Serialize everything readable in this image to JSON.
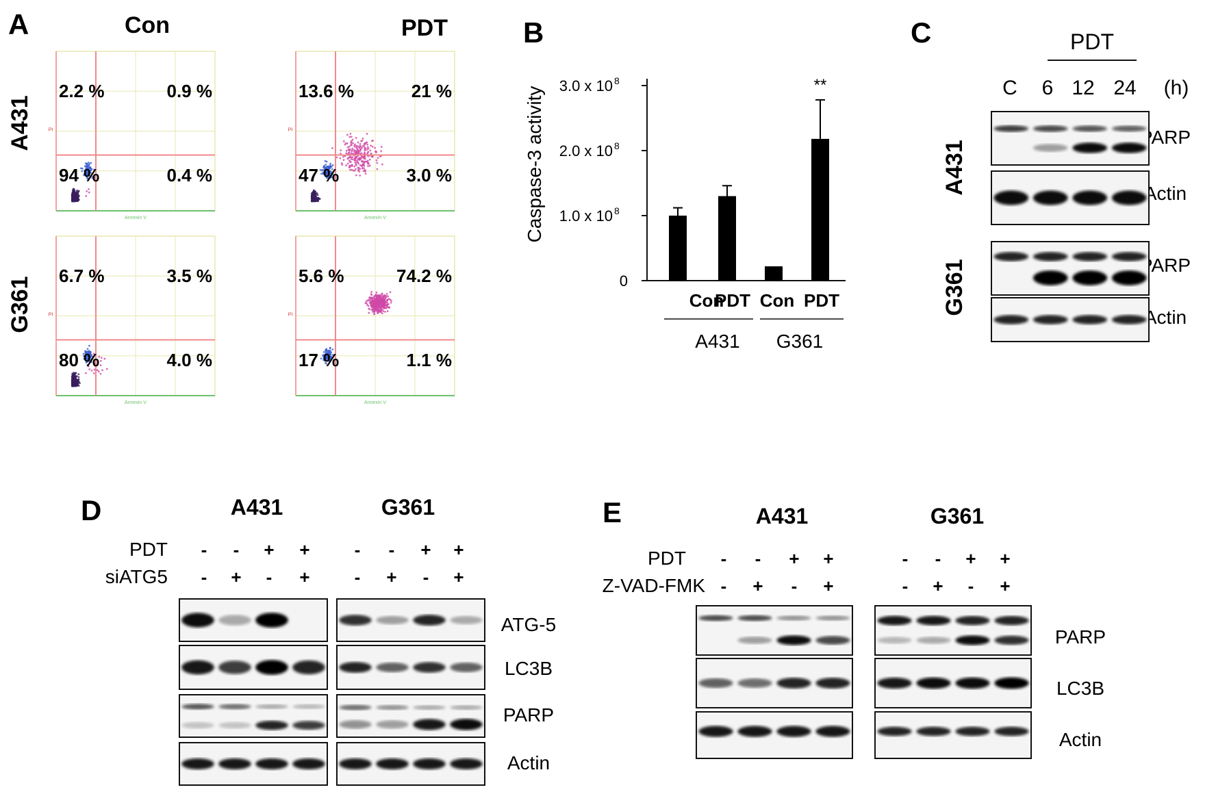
{
  "panel_letters": [
    "A",
    "B",
    "C",
    "D",
    "E"
  ],
  "panelA": {
    "columns": [
      "Con",
      "PDT"
    ],
    "rows": [
      "A431",
      "G361"
    ],
    "x_axis_label": "Annexin V",
    "y_axis_label": "PI",
    "quadrants": [
      {
        "row": "A431",
        "col": "Con",
        "ul": "2.2 %",
        "ur": "0.9 %",
        "ll": "94 %",
        "lr": "0.4 %"
      },
      {
        "row": "A431",
        "col": "PDT",
        "ul": "13.6 %",
        "ur": "21 %",
        "ll": "47 %",
        "lr": "3.0 %"
      },
      {
        "row": "G361",
        "col": "Con",
        "ul": "6.7 %",
        "ur": "3.5 %",
        "ll": "80 %",
        "lr": "4.0 %"
      },
      {
        "row": "G361",
        "col": "PDT",
        "ul": "5.6 %",
        "ur": "74.2 %",
        "ll": "17 %",
        "lr": "1.1 %"
      }
    ],
    "colors": {
      "gate": "#f08a8a",
      "grid": "#e8e8b0",
      "xaxis": "#6cc26c",
      "dots_dark": "#3a1f5e",
      "dots_blue": "#3c5fd0",
      "dots_pink": "#d04aa8"
    }
  },
  "chart_data": {
    "type": "bar",
    "categories": [
      "Con",
      "PDT",
      "Con",
      "PDT"
    ],
    "groups": [
      "A431",
      "G361"
    ],
    "values": [
      100000000.0,
      130000000.0,
      22000000.0,
      218000000.0
    ],
    "errors": [
      12000000.0,
      16000000.0,
      0,
      60000000.0
    ],
    "ylabel": "Caspase-3 activity",
    "ylim": [
      0,
      300000000.0
    ],
    "yticks": [
      "0",
      "1.0 x 10",
      "2.0 x 10",
      "3.0 x 10"
    ],
    "ytick_exponent": "8",
    "annotation": "**",
    "grid": false
  },
  "panelC": {
    "group_label": "PDT",
    "lanes": [
      "C",
      "6",
      "12",
      "24"
    ],
    "unit": "(h)",
    "rows": [
      "A431",
      "G361"
    ],
    "blots": [
      "PARP",
      "Actin"
    ]
  },
  "panelD": {
    "cells": [
      "A431",
      "G361"
    ],
    "treatments": [
      {
        "label": "PDT",
        "signs": [
          "-",
          "-",
          "+",
          "+"
        ]
      },
      {
        "label": "siATG5",
        "signs": [
          "-",
          "+",
          "-",
          "+"
        ]
      }
    ],
    "blots": [
      "ATG-5",
      "LC3B",
      "PARP",
      "Actin"
    ]
  },
  "panelE": {
    "cells": [
      "A431",
      "G361"
    ],
    "treatments": [
      {
        "label": "PDT",
        "signs": [
          "-",
          "-",
          "+",
          "+"
        ]
      },
      {
        "label": "Z-VAD-FMK",
        "signs": [
          "-",
          "+",
          "-",
          "+"
        ]
      }
    ],
    "blots": [
      "PARP",
      "LC3B",
      "Actin"
    ]
  }
}
